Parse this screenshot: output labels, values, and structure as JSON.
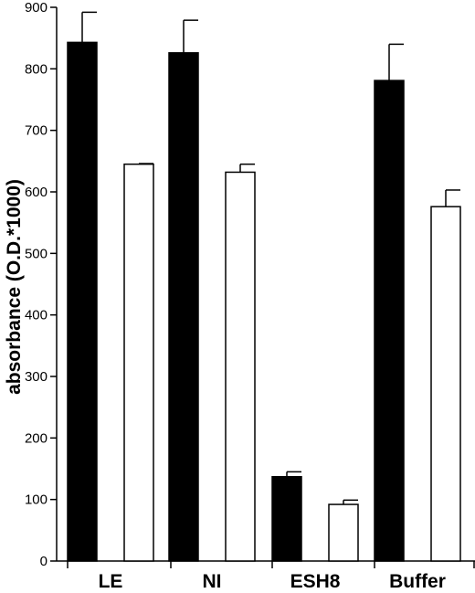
{
  "chart_data": {
    "type": "bar",
    "title": "",
    "xlabel": "",
    "ylabel": "absorbance (O.D.*1000)",
    "ylim": [
      0,
      900
    ],
    "yticks": [
      0,
      100,
      200,
      300,
      400,
      500,
      600,
      700,
      800,
      900
    ],
    "categories": [
      "LE",
      "NI",
      "ESH8",
      "Buffer"
    ],
    "series": [
      {
        "fill": "#000000",
        "values": [
          843,
          826,
          137,
          781
        ],
        "errors": [
          49,
          53,
          8,
          59
        ]
      },
      {
        "fill": "#ffffff",
        "values": [
          645,
          632,
          92,
          576
        ],
        "errors": [
          1,
          13,
          7,
          27
        ]
      }
    ],
    "grid": false,
    "legend": "none"
  }
}
